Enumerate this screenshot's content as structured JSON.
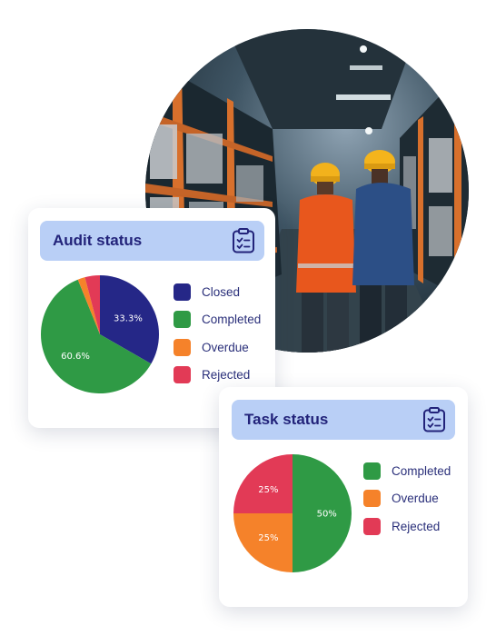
{
  "colors": {
    "closed": "#252787",
    "completed": "#2f9a45",
    "overdue": "#f5822a",
    "rejected": "#e23a56",
    "header_bg": "#b9cff6",
    "title_text": "#22237a"
  },
  "photo": {
    "icon": "warehouse-workers-photo"
  },
  "audit_card": {
    "title": "Audit status",
    "icon": "clipboard-check-icon",
    "legend": [
      "Closed",
      "Completed",
      "Overdue",
      "Rejected"
    ]
  },
  "task_card": {
    "title": "Task status",
    "icon": "clipboard-check-icon",
    "legend": [
      "Completed",
      "Overdue",
      "Rejected"
    ]
  },
  "chart_data": [
    {
      "type": "pie",
      "title": "Audit status",
      "categories": [
        "Closed",
        "Completed",
        "Overdue",
        "Rejected"
      ],
      "values": [
        33.3,
        60.6,
        2.0,
        4.1
      ],
      "labels": [
        "33.3%",
        "60.6%",
        "",
        ""
      ],
      "legend_position": "right"
    },
    {
      "type": "pie",
      "title": "Task status",
      "categories": [
        "Completed",
        "Overdue",
        "Rejected"
      ],
      "values": [
        50,
        25,
        25
      ],
      "labels": [
        "50%",
        "25%",
        "25%"
      ],
      "legend_position": "right"
    }
  ]
}
